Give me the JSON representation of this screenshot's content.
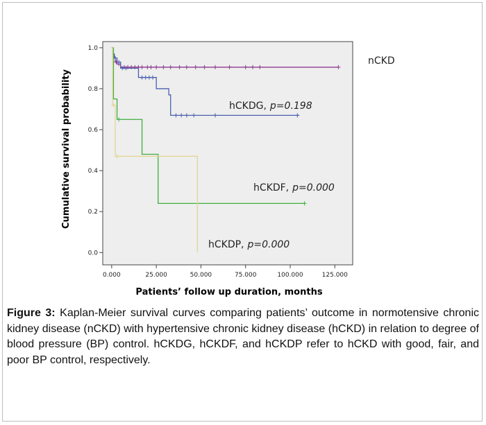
{
  "chart_data": {
    "type": "step",
    "xlabel": "Patients’ follow up duration, months",
    "ylabel": "Cumulative survival probability",
    "xlim": [
      -5,
      135
    ],
    "ylim": [
      -0.06,
      1.03
    ],
    "xticks": [
      {
        "value": 0,
        "label": "0.000"
      },
      {
        "value": 25,
        "label": "25.000"
      },
      {
        "value": 50,
        "label": "50.000"
      },
      {
        "value": 75,
        "label": "75.000"
      },
      {
        "value": 100,
        "label": "100.000"
      },
      {
        "value": 125,
        "label": "125.000"
      }
    ],
    "yticks": [
      {
        "value": 0,
        "label": "0.0"
      },
      0.2,
      0.4,
      0.6,
      0.8,
      {
        "value": 1,
        "label": "1.0"
      }
    ],
    "background": "#eeeeee",
    "series": [
      {
        "name": "nCKD",
        "color": "#8e3a8e",
        "x": [
          0,
          0.5,
          1,
          2,
          3,
          5,
          127
        ],
        "values": [
          1,
          0.97,
          0.95,
          0.93,
          0.92,
          0.905,
          0.905
        ],
        "censored_x": [
          2.5,
          4,
          7,
          9,
          11,
          13,
          15,
          17,
          20,
          22,
          25,
          29,
          33,
          38,
          42,
          47,
          52,
          58,
          66,
          75,
          79,
          83,
          127
        ],
        "censored_values": [
          0.93,
          0.92,
          0.905,
          0.905,
          0.905,
          0.905,
          0.905,
          0.905,
          0.905,
          0.905,
          0.905,
          0.905,
          0.905,
          0.905,
          0.905,
          0.905,
          0.905,
          0.905,
          0.905,
          0.905,
          0.905,
          0.905,
          0.905
        ]
      },
      {
        "name": "hCKDG,",
        "p": "p=0.198",
        "color": "#4a5fae",
        "x": [
          0,
          0.5,
          1.5,
          3,
          5,
          15,
          25,
          32,
          33,
          105
        ],
        "values": [
          1,
          0.97,
          0.95,
          0.93,
          0.9,
          0.855,
          0.8,
          0.77,
          0.67,
          0.67
        ],
        "censored_x": [
          2,
          4,
          6,
          8,
          17,
          19,
          21,
          23,
          36,
          39,
          42,
          46,
          58,
          104
        ],
        "censored_values": [
          0.95,
          0.93,
          0.9,
          0.9,
          0.855,
          0.855,
          0.855,
          0.855,
          0.67,
          0.67,
          0.67,
          0.67,
          0.67,
          0.67
        ]
      },
      {
        "name": "hCKDF,",
        "p": "p=0.000",
        "color": "#3fae3f",
        "x": [
          0,
          1,
          3,
          17,
          26,
          108
        ],
        "values": [
          1,
          0.75,
          0.65,
          0.48,
          0.24,
          0.24
        ],
        "censored_x": [
          4,
          108
        ],
        "censored_values": [
          0.65,
          0.24
        ]
      },
      {
        "name": "hCKDP,",
        "p": "p=0.000",
        "color": "#e3d597",
        "x": [
          0,
          0.5,
          2,
          48
        ],
        "values": [
          1,
          0.72,
          0.47,
          0
        ],
        "censored_x": [
          1,
          3
        ],
        "censored_values": [
          0.72,
          0.47
        ]
      }
    ]
  },
  "caption": {
    "label": "Figure 3:",
    "text": "Kaplan-Meier survival curves comparing patients’ outcome in normotensive chronic kidney disease (nCKD) with hypertensive chronic kidney disease (hCKD) in relation to degree of blood pressure (BP) control. hCKDG, hCKDF, and hCKDP refer to hCKD with good, fair, and poor BP control, respectively."
  }
}
